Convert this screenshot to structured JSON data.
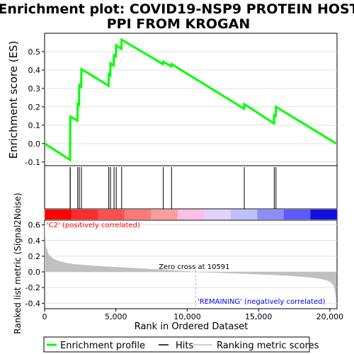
{
  "chart_data": {
    "type": "line",
    "title_line1": "Enrichment plot: COVID19-NSP9 PROTEIN HOST",
    "title_line2": "PPI FROM KROGAN",
    "es_ylabel": "Enrichment score (ES)",
    "metric_ylabel": "Ranked list metric (Signal2Noise)",
    "xlabel": "Rank in Ordered Dataset",
    "xlim": [
      0,
      20500
    ],
    "es_ylim": [
      -0.12,
      0.6
    ],
    "metric_ylim": [
      -0.47,
      0.66
    ],
    "x_ticks": [
      "0",
      "5,000",
      "10,000",
      "15,000",
      "20,000"
    ],
    "x_tick_values": [
      0,
      5000,
      10000,
      15000,
      20000
    ],
    "es_ticks": [
      "-0.1",
      "0.0",
      "0.1",
      "0.2",
      "0.3",
      "0.4",
      "0.5"
    ],
    "es_tick_values": [
      -0.1,
      0.0,
      0.1,
      0.2,
      0.3,
      0.4,
      0.5
    ],
    "metric_ticks": [
      "-0.4",
      "-0.2",
      "0.0",
      "0.2",
      "0.4",
      "0.6"
    ],
    "metric_tick_values": [
      -0.4,
      -0.2,
      0.0,
      0.2,
      0.4,
      0.6
    ],
    "enrichment_profile": {
      "x": [
        0,
        1780,
        1790,
        1800,
        2300,
        2320,
        2410,
        2430,
        2560,
        2580,
        4480,
        4500,
        4600,
        4620,
        4850,
        4870,
        5000,
        5020,
        5380,
        5400,
        8300,
        8320,
        8880,
        8900,
        13980,
        14000,
        16080,
        16100,
        16200,
        16220,
        20450
      ],
      "y": [
        0.0,
        -0.088,
        0.03,
        0.147,
        0.125,
        0.222,
        0.205,
        0.318,
        0.31,
        0.405,
        0.315,
        0.377,
        0.37,
        0.437,
        0.425,
        0.48,
        0.475,
        0.535,
        0.515,
        0.565,
        0.432,
        0.445,
        0.42,
        0.432,
        0.19,
        0.215,
        0.11,
        0.155,
        0.15,
        0.2,
        0.0
      ]
    },
    "hits": [
      1790,
      1800,
      2320,
      2430,
      2580,
      4500,
      4620,
      4870,
      5020,
      5400,
      8320,
      8900,
      14000,
      16100,
      16220
    ],
    "ranking_metric": {
      "x": [
        0,
        100,
        300,
        600,
        1000,
        1500,
        2000,
        3000,
        4000,
        5000,
        6000,
        7000,
        8000,
        9000,
        10000,
        10591,
        11000,
        12000,
        13000,
        14000,
        15000,
        16000,
        17000,
        18000,
        19000,
        19500,
        19800,
        20000,
        20100,
        20200,
        20300,
        20400,
        20450
      ],
      "y": [
        0.66,
        0.32,
        0.22,
        0.17,
        0.14,
        0.115,
        0.1,
        0.085,
        0.072,
        0.062,
        0.052,
        0.042,
        0.032,
        0.02,
        0.008,
        0.0,
        -0.005,
        -0.012,
        -0.018,
        -0.025,
        -0.032,
        -0.04,
        -0.05,
        -0.062,
        -0.08,
        -0.095,
        -0.11,
        -0.125,
        -0.14,
        -0.16,
        -0.2,
        -0.3,
        -0.44
      ]
    },
    "zero_cross_label": "Zero cross at 10591",
    "zero_cross": 10591,
    "pos_label": "'C2' (positively correlated)",
    "neg_label": "'REMAINING' (negatively correlated)",
    "legend": [
      "Enrichment profile",
      "Hits",
      "Ranking metric scores"
    ],
    "colors": {
      "profile": "#00ff00",
      "hits": "#000000",
      "metric_fill": "#c0c0c0",
      "pos_label": "#ff0000",
      "neg_label": "#0000ff",
      "axes": "#000000",
      "grid": "#e0e0e0"
    },
    "heatbar_colors": [
      "#ff0000",
      "#ff2c2c",
      "#ff5050",
      "#ff7878",
      "#ff9c9c",
      "#ffc0e6",
      "#e0d2ff",
      "#c0c0ff",
      "#8c8cff",
      "#5a5aff",
      "#1010e0"
    ]
  }
}
